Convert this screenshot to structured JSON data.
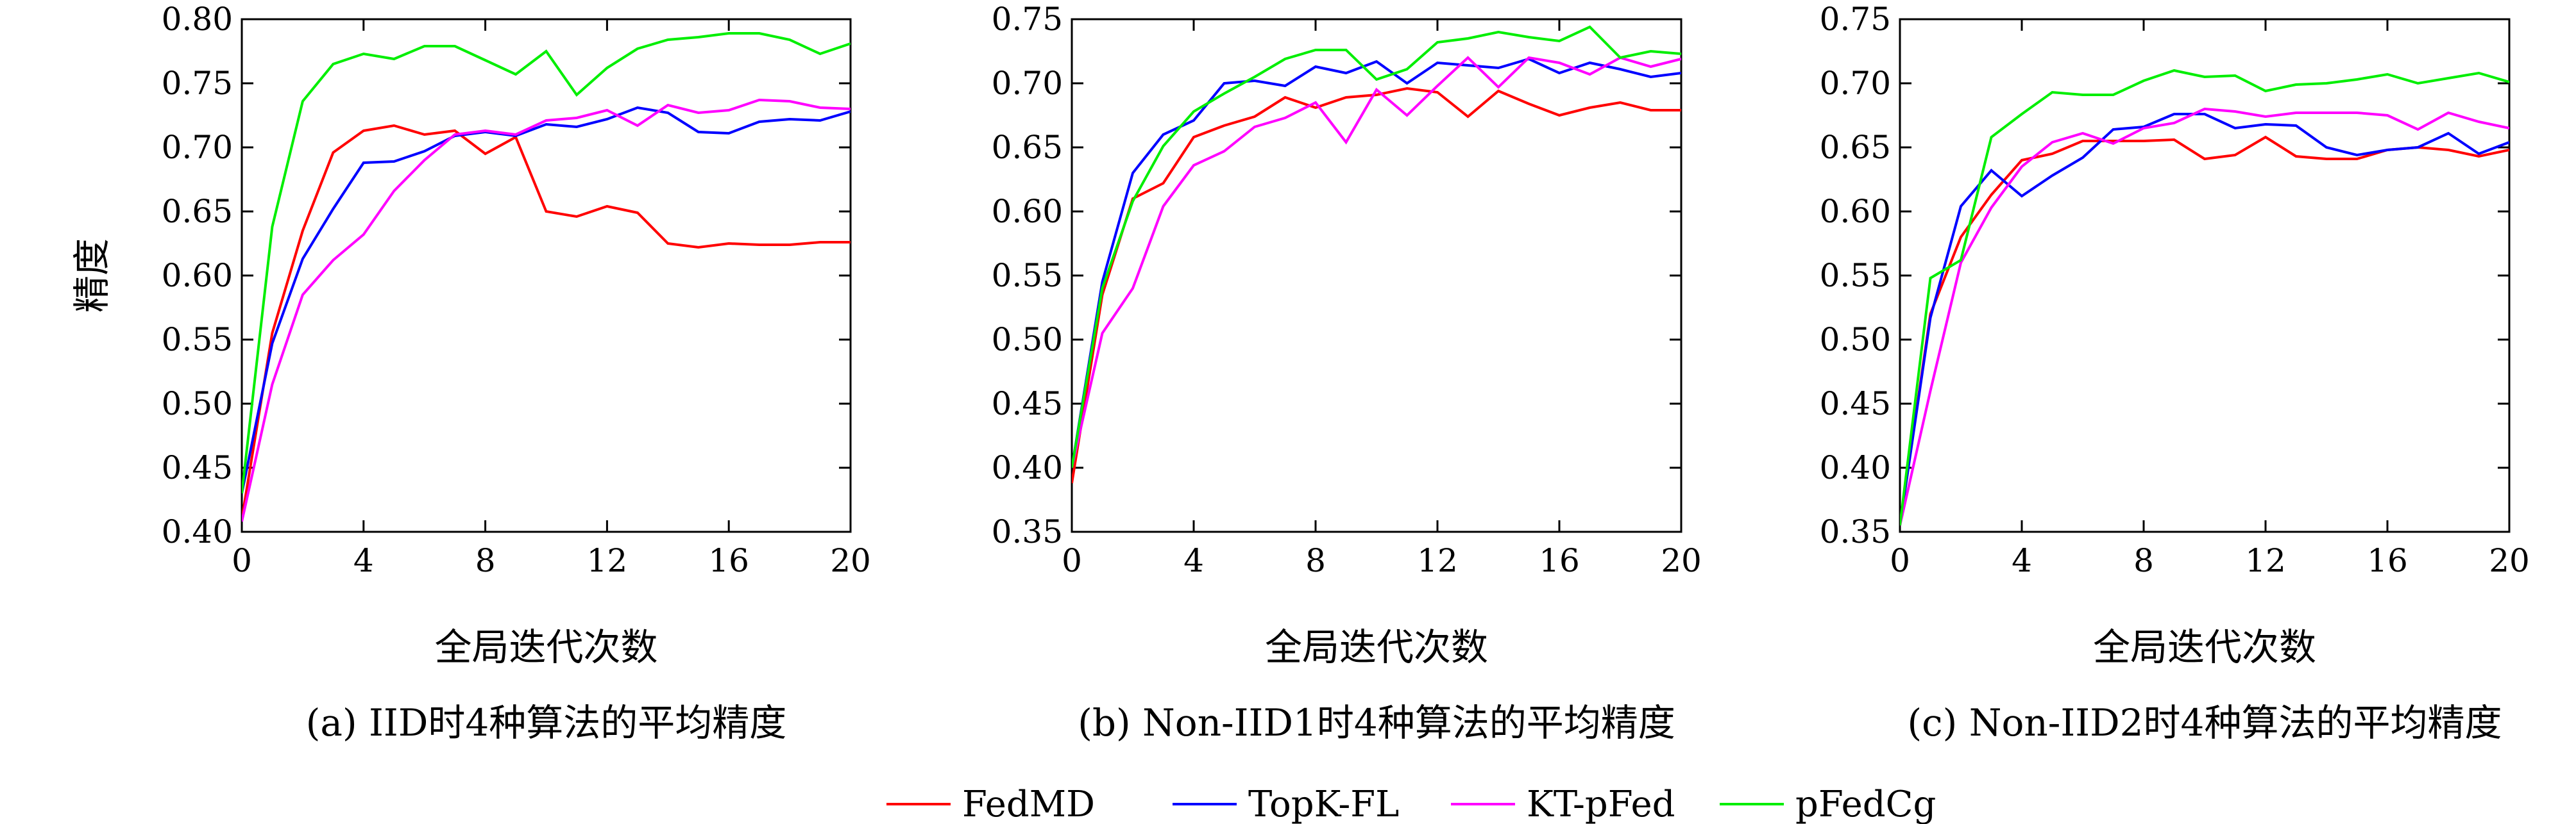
{
  "chart_data": [
    {
      "type": "line",
      "caption": "(a) IID时4种算法的平均精度",
      "xlabel": "全局迭代次数",
      "ylabel": "精度",
      "xlim": [
        0,
        20
      ],
      "ylim": [
        0.4,
        0.8
      ],
      "xticks": [
        0,
        4,
        8,
        12,
        16,
        20
      ],
      "yticks": [
        0.4,
        0.45,
        0.5,
        0.55,
        0.6,
        0.65,
        0.7,
        0.75,
        0.8
      ],
      "x": [
        0,
        1,
        2,
        3,
        4,
        5,
        6,
        7,
        8,
        9,
        10,
        11,
        12,
        13,
        14,
        15,
        16,
        17,
        18,
        19,
        20
      ],
      "series": [
        {
          "name": "FedMD",
          "values": [
            0.41,
            0.555,
            0.635,
            0.696,
            0.713,
            0.717,
            0.71,
            0.713,
            0.695,
            0.708,
            0.65,
            0.646,
            0.654,
            0.649,
            0.625,
            0.622,
            0.625,
            0.624,
            0.624,
            0.626,
            0.626
          ]
        },
        {
          "name": "TopK-FL",
          "values": [
            0.43,
            0.547,
            0.613,
            0.652,
            0.688,
            0.689,
            0.697,
            0.709,
            0.712,
            0.709,
            0.718,
            0.716,
            0.722,
            0.731,
            0.727,
            0.712,
            0.711,
            0.72,
            0.722,
            0.721,
            0.728
          ]
        },
        {
          "name": "KT-pFed",
          "values": [
            0.408,
            0.515,
            0.585,
            0.612,
            0.632,
            0.666,
            0.69,
            0.71,
            0.713,
            0.71,
            0.721,
            0.723,
            0.729,
            0.717,
            0.733,
            0.727,
            0.729,
            0.737,
            0.736,
            0.731,
            0.73
          ]
        },
        {
          "name": "pFedCg",
          "values": [
            0.43,
            0.638,
            0.736,
            0.765,
            0.773,
            0.769,
            0.779,
            0.779,
            0.768,
            0.757,
            0.775,
            0.741,
            0.762,
            0.777,
            0.784,
            0.786,
            0.789,
            0.789,
            0.784,
            0.773,
            0.781
          ]
        }
      ]
    },
    {
      "type": "line",
      "caption": "(b) Non-IID1时4种算法的平均精度",
      "xlabel": "全局迭代次数",
      "ylabel": "",
      "xlim": [
        0,
        20
      ],
      "ylim": [
        0.35,
        0.75
      ],
      "xticks": [
        0,
        4,
        8,
        12,
        16,
        20
      ],
      "yticks": [
        0.35,
        0.4,
        0.45,
        0.5,
        0.55,
        0.6,
        0.65,
        0.7,
        0.75
      ],
      "x": [
        0,
        1,
        2,
        3,
        4,
        5,
        6,
        7,
        8,
        9,
        10,
        11,
        12,
        13,
        14,
        15,
        16,
        17,
        18,
        19,
        20
      ],
      "series": [
        {
          "name": "FedMD",
          "values": [
            0.388,
            0.535,
            0.61,
            0.622,
            0.658,
            0.667,
            0.674,
            0.689,
            0.681,
            0.689,
            0.691,
            0.696,
            0.693,
            0.674,
            0.694,
            0.684,
            0.675,
            0.681,
            0.685,
            0.679,
            0.679
          ]
        },
        {
          "name": "TopK-FL",
          "values": [
            0.4,
            0.545,
            0.63,
            0.66,
            0.671,
            0.7,
            0.702,
            0.698,
            0.713,
            0.708,
            0.717,
            0.7,
            0.716,
            0.714,
            0.712,
            0.719,
            0.708,
            0.716,
            0.711,
            0.705,
            0.708
          ]
        },
        {
          "name": "KT-pFed",
          "values": [
            0.4,
            0.505,
            0.54,
            0.604,
            0.636,
            0.647,
            0.666,
            0.673,
            0.685,
            0.654,
            0.695,
            0.675,
            0.698,
            0.72,
            0.697,
            0.72,
            0.716,
            0.707,
            0.72,
            0.713,
            0.719
          ]
        },
        {
          "name": "pFedCg",
          "values": [
            0.4,
            0.54,
            0.608,
            0.651,
            0.678,
            0.692,
            0.705,
            0.719,
            0.726,
            0.726,
            0.703,
            0.711,
            0.732,
            0.735,
            0.74,
            0.736,
            0.733,
            0.744,
            0.72,
            0.725,
            0.723
          ]
        }
      ]
    },
    {
      "type": "line",
      "caption": "(c) Non-IID2时4种算法的平均精度",
      "xlabel": "全局迭代次数",
      "ylabel": "",
      "xlim": [
        0,
        20
      ],
      "ylim": [
        0.35,
        0.75
      ],
      "xticks": [
        0,
        4,
        8,
        12,
        16,
        20
      ],
      "yticks": [
        0.35,
        0.4,
        0.45,
        0.5,
        0.55,
        0.6,
        0.65,
        0.7,
        0.75
      ],
      "x": [
        0,
        1,
        2,
        3,
        4,
        5,
        6,
        7,
        8,
        9,
        10,
        11,
        12,
        13,
        14,
        15,
        16,
        17,
        18,
        19,
        20
      ],
      "series": [
        {
          "name": "FedMD",
          "values": [
            0.355,
            0.52,
            0.58,
            0.613,
            0.64,
            0.645,
            0.655,
            0.655,
            0.655,
            0.656,
            0.641,
            0.644,
            0.658,
            0.643,
            0.641,
            0.641,
            0.648,
            0.65,
            0.648,
            0.643,
            0.648
          ]
        },
        {
          "name": "TopK-FL",
          "values": [
            0.355,
            0.517,
            0.604,
            0.632,
            0.612,
            0.628,
            0.642,
            0.664,
            0.666,
            0.676,
            0.676,
            0.665,
            0.668,
            0.667,
            0.65,
            0.644,
            0.648,
            0.65,
            0.661,
            0.645,
            0.654
          ]
        },
        {
          "name": "KT-pFed",
          "values": [
            0.355,
            0.46,
            0.56,
            0.603,
            0.635,
            0.654,
            0.661,
            0.653,
            0.665,
            0.669,
            0.68,
            0.678,
            0.674,
            0.677,
            0.677,
            0.677,
            0.675,
            0.664,
            0.677,
            0.67,
            0.665
          ]
        },
        {
          "name": "pFedCg",
          "values": [
            0.355,
            0.548,
            0.562,
            0.658,
            0.676,
            0.693,
            0.691,
            0.691,
            0.702,
            0.71,
            0.705,
            0.706,
            0.694,
            0.699,
            0.7,
            0.703,
            0.707,
            0.7,
            0.704,
            0.708,
            0.701
          ]
        }
      ]
    }
  ],
  "legend": {
    "items": [
      {
        "label": "FedMD",
        "color": "#ff0000"
      },
      {
        "label": "TopK-FL",
        "color": "#0000ff"
      },
      {
        "label": "KT-pFed",
        "color": "#ff00ff"
      },
      {
        "label": "pFedCg",
        "color": "#00ee00"
      }
    ]
  }
}
